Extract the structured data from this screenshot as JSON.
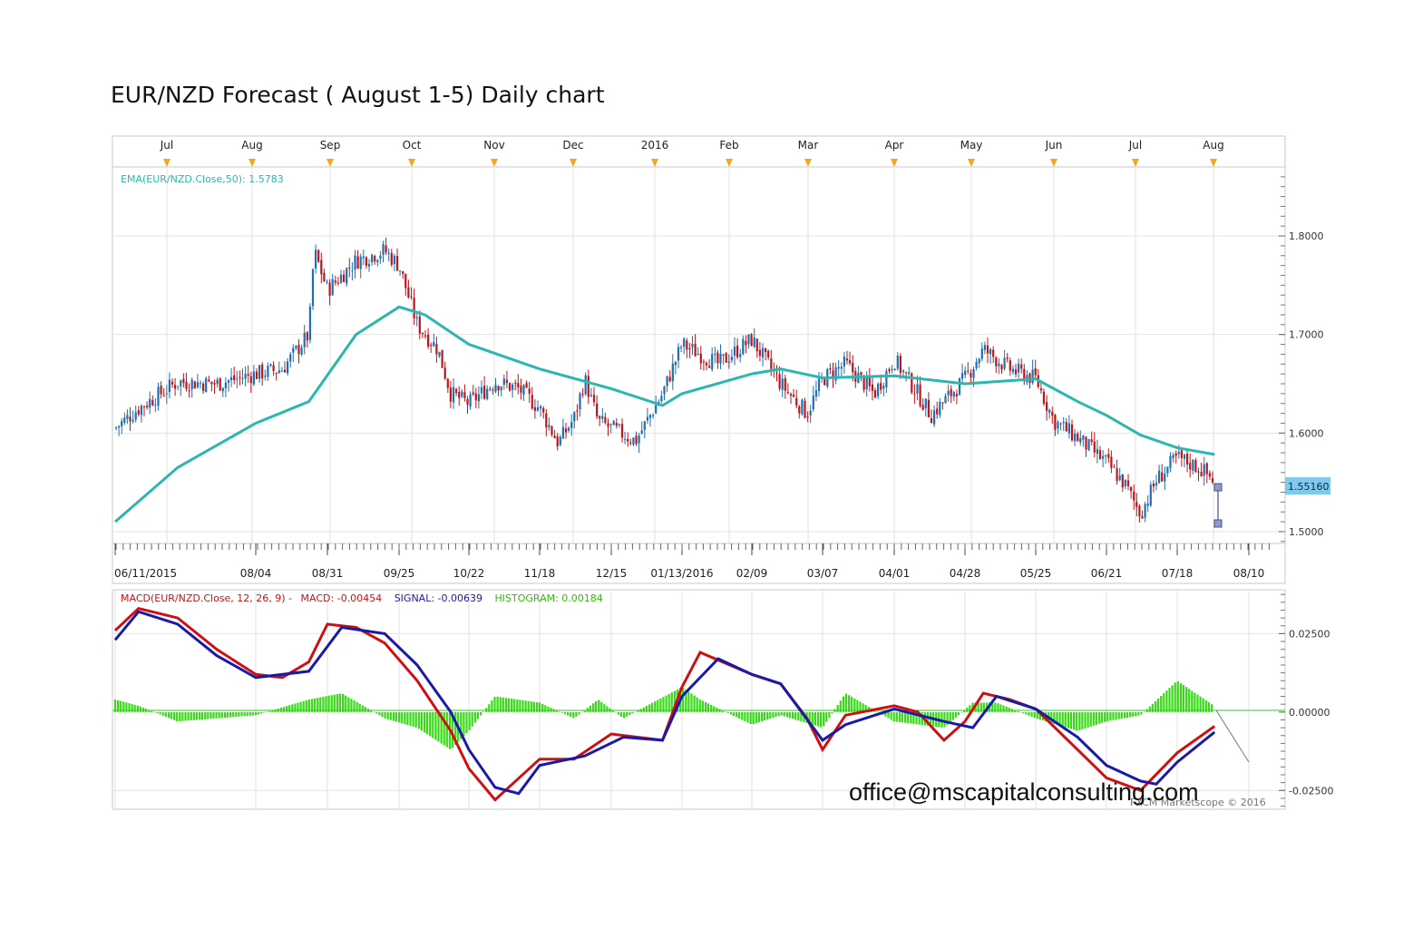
{
  "title": "EUR/NZD Forecast ( August 1-5) Daily chart",
  "email": "office@mscapitalconsulting.com",
  "copyright": "FXCM Marketscope © 2016",
  "colors": {
    "bullish": "#1f6fb5",
    "bearish": "#c0141c",
    "ema": "#2bb7ad",
    "macd": "#d01010",
    "signal": "#1a1aa8",
    "histogram": "#33dd11",
    "marker": "#f2a623",
    "price_tag": "#7fc9ee",
    "grid": "#e2e2e2"
  },
  "chart_data": [
    {
      "type": "candlestick",
      "name": "EUR/NZD",
      "indicator_label": "EMA(EUR/NZD.Close,50): 1.5783",
      "month_labels": [
        "Jul",
        "Aug",
        "Sep",
        "Oct",
        "Nov",
        "Dec",
        "2016",
        "Feb",
        "Mar",
        "Apr",
        "May",
        "Jun",
        "Jul",
        "Aug"
      ],
      "date_labels": [
        "06/11/2015",
        "08/04",
        "08/31",
        "09/25",
        "10/22",
        "11/18",
        "12/15",
        "01/13/2016",
        "02/09",
        "03/07",
        "04/01",
        "04/28",
        "05/25",
        "06/21",
        "07/18",
        "08/10"
      ],
      "y_ticks": [
        "1.5000",
        "1.6000",
        "1.7000",
        "1.8000"
      ],
      "ylim": [
        1.488,
        1.87
      ],
      "last_price": "1.55160",
      "close_path": [
        [
          "06/11/2015",
          1.605
        ],
        [
          "06/20",
          1.625
        ],
        [
          "07/05",
          1.652
        ],
        [
          "07/20",
          1.65
        ],
        [
          "08/04",
          1.66
        ],
        [
          "08/14",
          1.665
        ],
        [
          "08/24",
          1.7
        ],
        [
          "08/26",
          1.785
        ],
        [
          "08/31",
          1.745
        ],
        [
          "09/10",
          1.775
        ],
        [
          "09/20",
          1.785
        ],
        [
          "09/25",
          1.77
        ],
        [
          "10/02",
          1.71
        ],
        [
          "10/10",
          1.685
        ],
        [
          "10/15",
          1.64
        ],
        [
          "10/22",
          1.63
        ],
        [
          "11/01",
          1.652
        ],
        [
          "11/10",
          1.645
        ],
        [
          "11/18",
          1.625
        ],
        [
          "11/25",
          1.59
        ],
        [
          "12/01",
          1.615
        ],
        [
          "12/05",
          1.655
        ],
        [
          "12/10",
          1.612
        ],
        [
          "12/15",
          1.605
        ],
        [
          "12/25",
          1.592
        ],
        [
          "01/05/2016",
          1.64
        ],
        [
          "01/13/2016",
          1.69
        ],
        [
          "01/20",
          1.68
        ],
        [
          "01/27",
          1.67
        ],
        [
          "02/09",
          1.695
        ],
        [
          "02/20",
          1.65
        ],
        [
          "03/01",
          1.62
        ],
        [
          "03/07",
          1.655
        ],
        [
          "03/15",
          1.67
        ],
        [
          "03/25",
          1.64
        ],
        [
          "04/01",
          1.675
        ],
        [
          "04/10",
          1.64
        ],
        [
          "04/15",
          1.618
        ],
        [
          "04/28",
          1.655
        ],
        [
          "05/05",
          1.685
        ],
        [
          "05/15",
          1.665
        ],
        [
          "05/25",
          1.655
        ],
        [
          "06/01",
          1.612
        ],
        [
          "06/10",
          1.595
        ],
        [
          "06/21",
          1.57
        ],
        [
          "06/28",
          1.548
        ],
        [
          "07/04",
          1.518
        ],
        [
          "07/10",
          1.552
        ],
        [
          "07/18",
          1.575
        ],
        [
          "07/25",
          1.565
        ],
        [
          "07/30",
          1.5516
        ]
      ],
      "ema_50": [
        [
          "06/11/2015",
          1.51
        ],
        [
          "07/05",
          1.565
        ],
        [
          "08/04",
          1.61
        ],
        [
          "08/24",
          1.632
        ],
        [
          "09/10",
          1.7
        ],
        [
          "09/25",
          1.728
        ],
        [
          "10/05",
          1.72
        ],
        [
          "10/22",
          1.69
        ],
        [
          "11/18",
          1.665
        ],
        [
          "12/15",
          1.645
        ],
        [
          "01/05/2016",
          1.628
        ],
        [
          "01/13/2016",
          1.64
        ],
        [
          "02/09",
          1.66
        ],
        [
          "02/20",
          1.665
        ],
        [
          "03/07",
          1.656
        ],
        [
          "04/01",
          1.658
        ],
        [
          "04/28",
          1.65
        ],
        [
          "05/25",
          1.655
        ],
        [
          "06/10",
          1.632
        ],
        [
          "06/21",
          1.618
        ],
        [
          "07/04",
          1.598
        ],
        [
          "07/18",
          1.585
        ],
        [
          "07/30",
          1.5783
        ]
      ]
    },
    {
      "type": "line",
      "name": "MACD",
      "indicator_label": "MACD(EUR/NZD.Close, 12, 26, 9) -",
      "macd_value": "MACD: -0.00454",
      "signal_value": "SIGNAL: -0.00639",
      "histogram_value": "HISTOGRAM: 0.00184",
      "y_ticks": [
        "0.02500",
        "0.00000",
        "-0.02500"
      ],
      "ylim": [
        -0.031,
        0.039
      ],
      "series": [
        {
          "name": "MACD",
          "values": [
            [
              "06/11/2015",
              0.026
            ],
            [
              "06/20",
              0.033
            ],
            [
              "07/05",
              0.03
            ],
            [
              "07/20",
              0.02
            ],
            [
              "08/04",
              0.012
            ],
            [
              "08/14",
              0.011
            ],
            [
              "08/24",
              0.016
            ],
            [
              "08/31",
              0.028
            ],
            [
              "09/10",
              0.027
            ],
            [
              "09/20",
              0.022
            ],
            [
              "10/02",
              0.01
            ],
            [
              "10/15",
              -0.006
            ],
            [
              "10/22",
              -0.018
            ],
            [
              "11/01",
              -0.028
            ],
            [
              "11/18",
              -0.015
            ],
            [
              "12/01",
              -0.015
            ],
            [
              "12/15",
              -0.007
            ],
            [
              "01/05/2016",
              -0.009
            ],
            [
              "01/13/2016",
              0.008
            ],
            [
              "01/20",
              0.019
            ],
            [
              "02/09",
              0.012
            ],
            [
              "02/20",
              0.009
            ],
            [
              "03/01",
              -0.002
            ],
            [
              "03/07",
              -0.012
            ],
            [
              "03/15",
              -0.001
            ],
            [
              "04/01",
              0.002
            ],
            [
              "04/10",
              0.0
            ],
            [
              "04/20",
              -0.009
            ],
            [
              "04/28",
              -0.003
            ],
            [
              "05/05",
              0.006
            ],
            [
              "05/15",
              0.004
            ],
            [
              "05/25",
              0.001
            ],
            [
              "06/10",
              -0.012
            ],
            [
              "06/21",
              -0.021
            ],
            [
              "07/04",
              -0.025
            ],
            [
              "07/18",
              -0.013
            ],
            [
              "07/30",
              -0.00454
            ]
          ]
        },
        {
          "name": "SIGNAL",
          "values": [
            [
              "06/11/2015",
              0.023
            ],
            [
              "06/20",
              0.032
            ],
            [
              "07/05",
              0.028
            ],
            [
              "07/20",
              0.018
            ],
            [
              "08/04",
              0.011
            ],
            [
              "08/24",
              0.013
            ],
            [
              "09/05",
              0.027
            ],
            [
              "09/20",
              0.025
            ],
            [
              "10/02",
              0.015
            ],
            [
              "10/15",
              0.0
            ],
            [
              "10/22",
              -0.012
            ],
            [
              "11/01",
              -0.024
            ],
            [
              "11/10",
              -0.026
            ],
            [
              "11/18",
              -0.017
            ],
            [
              "12/05",
              -0.014
            ],
            [
              "12/20",
              -0.008
            ],
            [
              "01/05/2016",
              -0.009
            ],
            [
              "01/13/2016",
              0.005
            ],
            [
              "01/27",
              0.017
            ],
            [
              "02/09",
              0.012
            ],
            [
              "02/20",
              0.009
            ],
            [
              "03/07",
              -0.009
            ],
            [
              "03/15",
              -0.004
            ],
            [
              "04/01",
              0.001
            ],
            [
              "04/20",
              -0.003
            ],
            [
              "05/01",
              -0.005
            ],
            [
              "05/10",
              0.005
            ],
            [
              "05/25",
              0.001
            ],
            [
              "06/10",
              -0.008
            ],
            [
              "06/21",
              -0.017
            ],
            [
              "07/04",
              -0.022
            ],
            [
              "07/10",
              -0.023
            ],
            [
              "07/18",
              -0.016
            ],
            [
              "07/30",
              -0.00639
            ]
          ]
        },
        {
          "name": "HISTOGRAM",
          "values": [
            [
              "06/11/2015",
              0.004
            ],
            [
              "06/20",
              0.002
            ],
            [
              "07/05",
              -0.003
            ],
            [
              "07/20",
              -0.002
            ],
            [
              "08/04",
              -0.001
            ],
            [
              "08/24",
              0.004
            ],
            [
              "09/05",
              0.006
            ],
            [
              "09/20",
              -0.002
            ],
            [
              "10/02",
              -0.005
            ],
            [
              "10/15",
              -0.012
            ],
            [
              "10/22",
              -0.006
            ],
            [
              "11/01",
              0.005
            ],
            [
              "11/18",
              0.003
            ],
            [
              "12/01",
              -0.002
            ],
            [
              "12/10",
              0.004
            ],
            [
              "12/20",
              -0.002
            ],
            [
              "01/13/2016",
              0.008
            ],
            [
              "01/20",
              0.004
            ],
            [
              "02/09",
              -0.004
            ],
            [
              "02/20",
              -0.001
            ],
            [
              "03/07",
              -0.005
            ],
            [
              "03/15",
              0.006
            ],
            [
              "04/01",
              -0.003
            ],
            [
              "04/20",
              -0.005
            ],
            [
              "05/01",
              0.003
            ],
            [
              "05/10",
              0.003
            ],
            [
              "05/25",
              -0.002
            ],
            [
              "06/10",
              -0.006
            ],
            [
              "06/21",
              -0.003
            ],
            [
              "07/04",
              -0.001
            ],
            [
              "07/18",
              0.01
            ],
            [
              "07/30",
              0.00184
            ]
          ]
        }
      ]
    }
  ]
}
